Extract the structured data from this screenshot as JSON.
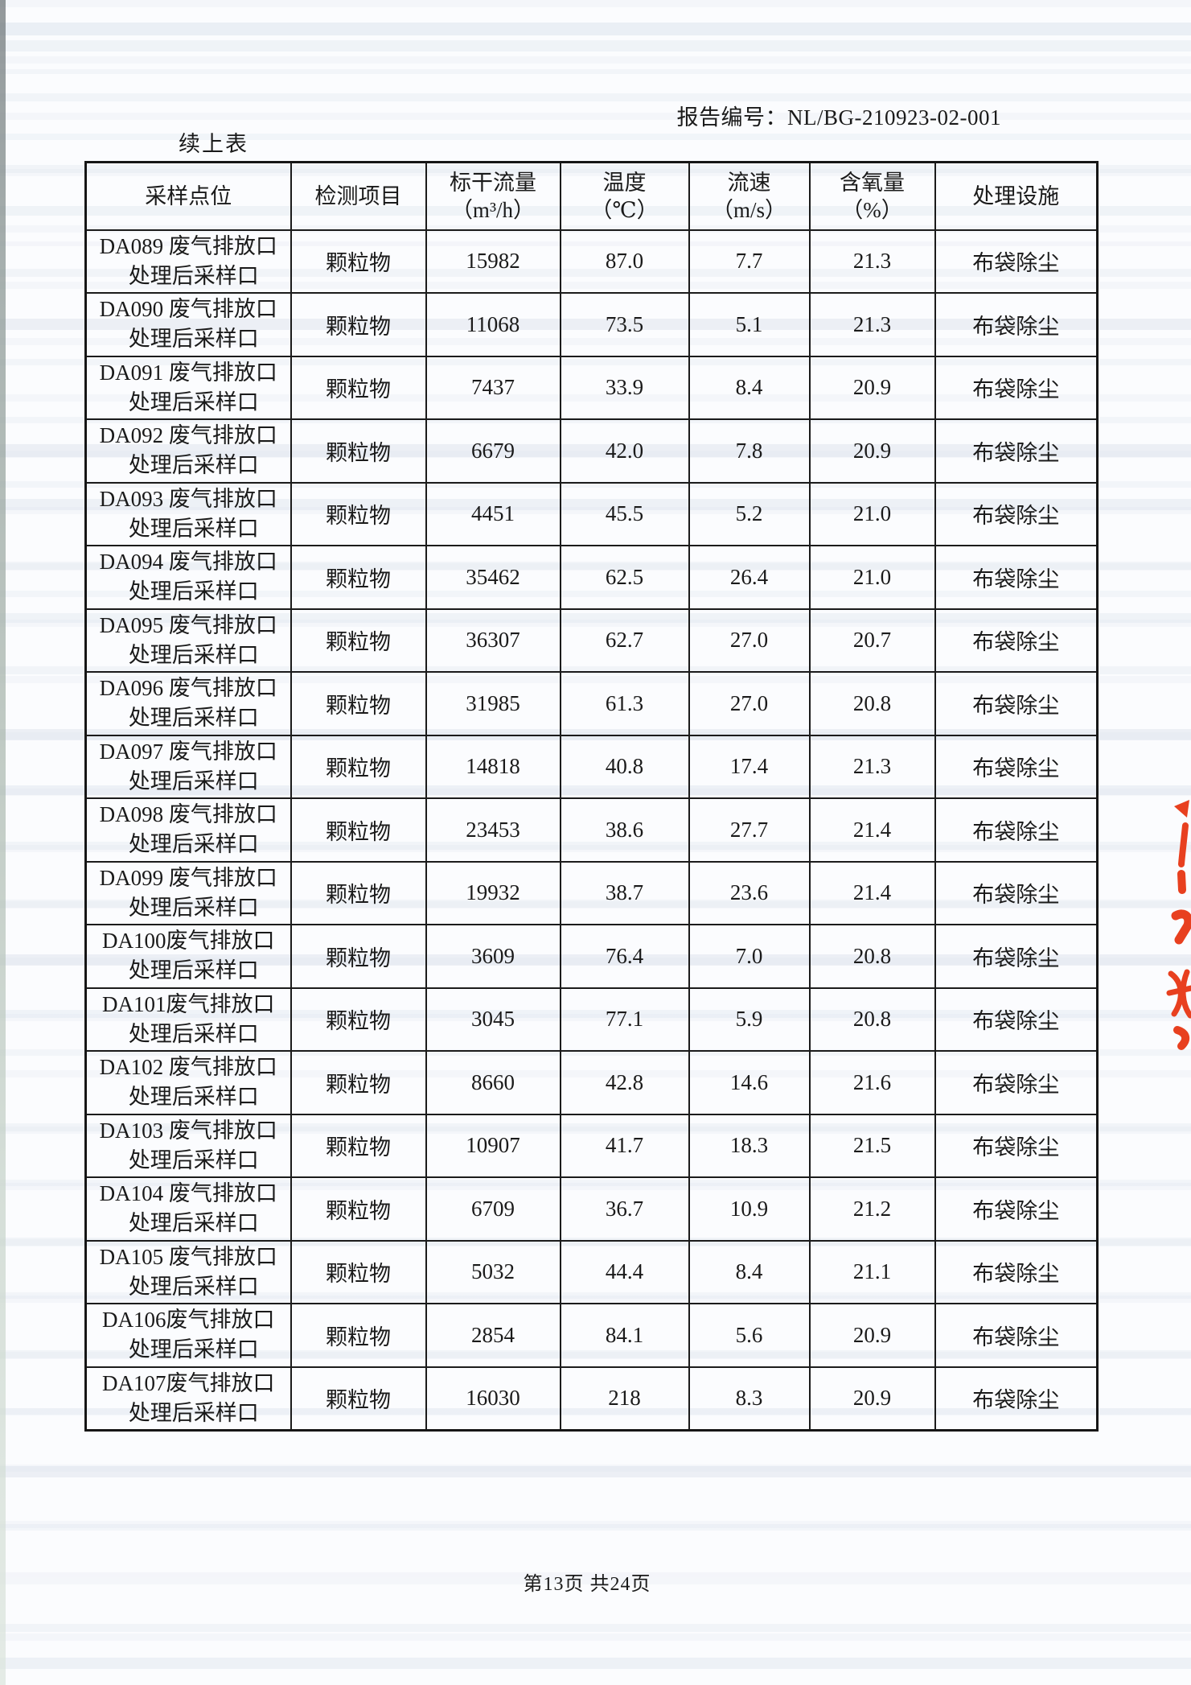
{
  "report": {
    "header_label": "报告编号：NL/BG-210923-02-001",
    "continued_label": "续上表",
    "footer": "第13页 共24页"
  },
  "colors": {
    "paper": "#fbfcfe",
    "ink": "#1a1a1a",
    "table_border": "#1b1b1b",
    "scan_stripe": "#d9e1ec",
    "pen_mark": "#e8401f"
  },
  "table": {
    "columns": [
      {
        "label": "采样点位",
        "unit": ""
      },
      {
        "label": "检测项目",
        "unit": ""
      },
      {
        "label": "标干流量",
        "unit": "（m³/h）"
      },
      {
        "label": "温度",
        "unit": "（℃）"
      },
      {
        "label": "流速",
        "unit": "（m/s）"
      },
      {
        "label": "含氧量",
        "unit": "（%）"
      },
      {
        "label": "处理设施",
        "unit": ""
      }
    ],
    "rows": [
      {
        "point_line1": "DA089 废气排放口",
        "point_line2": "处理后采样口",
        "item": "颗粒物",
        "flow": "15982",
        "temp": "87.0",
        "velocity": "7.7",
        "oxygen": "21.3",
        "facility": "布袋除尘"
      },
      {
        "point_line1": "DA090 废气排放口",
        "point_line2": "处理后采样口",
        "item": "颗粒物",
        "flow": "11068",
        "temp": "73.5",
        "velocity": "5.1",
        "oxygen": "21.3",
        "facility": "布袋除尘"
      },
      {
        "point_line1": "DA091 废气排放口",
        "point_line2": "处理后采样口",
        "item": "颗粒物",
        "flow": "7437",
        "temp": "33.9",
        "velocity": "8.4",
        "oxygen": "20.9",
        "facility": "布袋除尘"
      },
      {
        "point_line1": "DA092 废气排放口",
        "point_line2": "处理后采样口",
        "item": "颗粒物",
        "flow": "6679",
        "temp": "42.0",
        "velocity": "7.8",
        "oxygen": "20.9",
        "facility": "布袋除尘"
      },
      {
        "point_line1": "DA093 废气排放口",
        "point_line2": "处理后采样口",
        "item": "颗粒物",
        "flow": "4451",
        "temp": "45.5",
        "velocity": "5.2",
        "oxygen": "21.0",
        "facility": "布袋除尘"
      },
      {
        "point_line1": "DA094 废气排放口",
        "point_line2": "处理后采样口",
        "item": "颗粒物",
        "flow": "35462",
        "temp": "62.5",
        "velocity": "26.4",
        "oxygen": "21.0",
        "facility": "布袋除尘"
      },
      {
        "point_line1": "DA095 废气排放口",
        "point_line2": "处理后采样口",
        "item": "颗粒物",
        "flow": "36307",
        "temp": "62.7",
        "velocity": "27.0",
        "oxygen": "20.7",
        "facility": "布袋除尘"
      },
      {
        "point_line1": "DA096 废气排放口",
        "point_line2": "处理后采样口",
        "item": "颗粒物",
        "flow": "31985",
        "temp": "61.3",
        "velocity": "27.0",
        "oxygen": "20.8",
        "facility": "布袋除尘"
      },
      {
        "point_line1": "DA097 废气排放口",
        "point_line2": "处理后采样口",
        "item": "颗粒物",
        "flow": "14818",
        "temp": "40.8",
        "velocity": "17.4",
        "oxygen": "21.3",
        "facility": "布袋除尘"
      },
      {
        "point_line1": "DA098 废气排放口",
        "point_line2": "处理后采样口",
        "item": "颗粒物",
        "flow": "23453",
        "temp": "38.6",
        "velocity": "27.7",
        "oxygen": "21.4",
        "facility": "布袋除尘"
      },
      {
        "point_line1": "DA099 废气排放口",
        "point_line2": "处理后采样口",
        "item": "颗粒物",
        "flow": "19932",
        "temp": "38.7",
        "velocity": "23.6",
        "oxygen": "21.4",
        "facility": "布袋除尘"
      },
      {
        "point_line1": "DA100废气排放口",
        "point_line2": "处理后采样口",
        "item": "颗粒物",
        "flow": "3609",
        "temp": "76.4",
        "velocity": "7.0",
        "oxygen": "20.8",
        "facility": "布袋除尘"
      },
      {
        "point_line1": "DA101废气排放口",
        "point_line2": "处理后采样口",
        "item": "颗粒物",
        "flow": "3045",
        "temp": "77.1",
        "velocity": "5.9",
        "oxygen": "20.8",
        "facility": "布袋除尘"
      },
      {
        "point_line1": "DA102 废气排放口",
        "point_line2": "处理后采样口",
        "item": "颗粒物",
        "flow": "8660",
        "temp": "42.8",
        "velocity": "14.6",
        "oxygen": "21.6",
        "facility": "布袋除尘"
      },
      {
        "point_line1": "DA103 废气排放口",
        "point_line2": "处理后采样口",
        "item": "颗粒物",
        "flow": "10907",
        "temp": "41.7",
        "velocity": "18.3",
        "oxygen": "21.5",
        "facility": "布袋除尘"
      },
      {
        "point_line1": "DA104 废气排放口",
        "point_line2": "处理后采样口",
        "item": "颗粒物",
        "flow": "6709",
        "temp": "36.7",
        "velocity": "10.9",
        "oxygen": "21.2",
        "facility": "布袋除尘"
      },
      {
        "point_line1": "DA105 废气排放口",
        "point_line2": "处理后采样口",
        "item": "颗粒物",
        "flow": "5032",
        "temp": "44.4",
        "velocity": "8.4",
        "oxygen": "21.1",
        "facility": "布袋除尘"
      },
      {
        "point_line1": "DA106废气排放口",
        "point_line2": "处理后采样口",
        "item": "颗粒物",
        "flow": "2854",
        "temp": "84.1",
        "velocity": "5.6",
        "oxygen": "20.9",
        "facility": "布袋除尘"
      },
      {
        "point_line1": "DA107废气排放口",
        "point_line2": "处理后采样口",
        "item": "颗粒物",
        "flow": "16030",
        "temp": "218",
        "velocity": "8.3",
        "oxygen": "20.9",
        "facility": "布袋除尘"
      }
    ]
  }
}
